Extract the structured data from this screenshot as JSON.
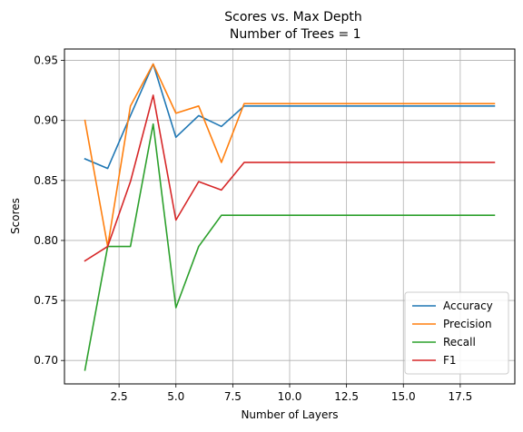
{
  "chart_data": {
    "type": "line",
    "title": "Scores vs. Max Depth",
    "subtitle": " Number of Trees = 1",
    "xlabel": "Number of Layers",
    "ylabel": "Scores",
    "xlim": [
      0.1,
      19.9
    ],
    "ylim": [
      0.6805,
      0.9595
    ],
    "xticks": [
      2.5,
      5.0,
      7.5,
      10.0,
      12.5,
      15.0,
      17.5
    ],
    "xtick_labels": [
      "2.5",
      "5.0",
      "7.5",
      "10.0",
      "12.5",
      "15.0",
      "17.5"
    ],
    "yticks": [
      0.7,
      0.75,
      0.8,
      0.85,
      0.9,
      0.95
    ],
    "ytick_labels": [
      "0.70",
      "0.75",
      "0.80",
      "0.85",
      "0.90",
      "0.95"
    ],
    "grid": true,
    "legend_position": "bottom-right",
    "x": [
      1,
      2,
      3,
      4,
      5,
      6,
      7,
      8,
      9,
      10,
      11,
      12,
      13,
      14,
      15,
      16,
      17,
      18,
      19
    ],
    "series": [
      {
        "name": "Accuracy",
        "color": "#1f77b4",
        "values": [
          0.868,
          0.86,
          0.904,
          0.947,
          0.886,
          0.904,
          0.895,
          0.912,
          0.912,
          0.912,
          0.912,
          0.912,
          0.912,
          0.912,
          0.912,
          0.912,
          0.912,
          0.912,
          0.912
        ]
      },
      {
        "name": "Precision",
        "color": "#ff7f0e",
        "values": [
          0.9,
          0.795,
          0.912,
          0.947,
          0.906,
          0.912,
          0.865,
          0.914,
          0.914,
          0.914,
          0.914,
          0.914,
          0.914,
          0.914,
          0.914,
          0.914,
          0.914,
          0.914,
          0.914
        ]
      },
      {
        "name": "Recall",
        "color": "#2ca02c",
        "values": [
          0.692,
          0.795,
          0.795,
          0.897,
          0.744,
          0.795,
          0.821,
          0.821,
          0.821,
          0.821,
          0.821,
          0.821,
          0.821,
          0.821,
          0.821,
          0.821,
          0.821,
          0.821,
          0.821
        ]
      },
      {
        "name": "F1",
        "color": "#d62728",
        "values": [
          0.783,
          0.795,
          0.849,
          0.921,
          0.817,
          0.849,
          0.842,
          0.865,
          0.865,
          0.865,
          0.865,
          0.865,
          0.865,
          0.865,
          0.865,
          0.865,
          0.865,
          0.865,
          0.865
        ]
      }
    ]
  }
}
